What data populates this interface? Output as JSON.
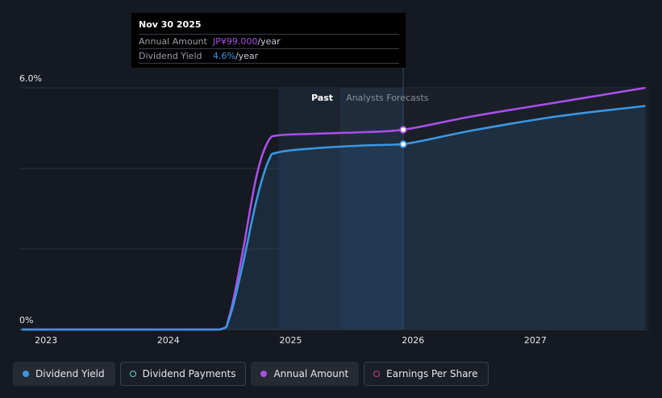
{
  "tooltip": {
    "date": "Nov 30 2025",
    "annual_amount_label": "Annual Amount",
    "annual_amount_value": "JP¥99.000",
    "annual_amount_unit": "/year",
    "dividend_yield_label": "Dividend Yield",
    "dividend_yield_value": "4.6%",
    "dividend_yield_unit": "/year"
  },
  "legend": [
    {
      "label": "Dividend Yield",
      "color": "#3b97e3",
      "marker": "filled",
      "active": true
    },
    {
      "label": "Dividend Payments",
      "color": "#5bd1c8",
      "marker": "ring",
      "active": false
    },
    {
      "label": "Annual Amount",
      "color": "#a94fe8",
      "marker": "filled",
      "active": true
    },
    {
      "label": "Earnings Per Share",
      "color": "#c4407a",
      "marker": "ring",
      "active": false
    }
  ],
  "chart_data": {
    "type": "line",
    "y_tick_labels": [
      "6.0%",
      "0%"
    ],
    "ylim": [
      0,
      6.0
    ],
    "x_tick_labels": [
      "2023",
      "2024",
      "2025",
      "2026",
      "2027"
    ],
    "xlim": [
      2022.8,
      2027.9
    ],
    "region_labels": {
      "past": "Past",
      "forecast": "Analysts Forecasts"
    },
    "past_region": [
      2024.9,
      2025.92
    ],
    "past_highlight_split": 2025.4,
    "series": [
      {
        "name": "Dividend Yield",
        "color": "#3b97e3",
        "points": [
          [
            2022.8,
            0
          ],
          [
            2024.1,
            0
          ],
          [
            2024.42,
            0
          ],
          [
            2024.5,
            0.3
          ],
          [
            2024.6,
            1.5
          ],
          [
            2024.72,
            3.2
          ],
          [
            2024.82,
            4.2
          ],
          [
            2024.9,
            4.4
          ],
          [
            2025.2,
            4.5
          ],
          [
            2025.6,
            4.57
          ],
          [
            2025.92,
            4.6
          ],
          [
            2026.5,
            4.95
          ],
          [
            2027.2,
            5.3
          ],
          [
            2027.9,
            5.55
          ]
        ]
      },
      {
        "name": "Annual Amount",
        "color": "#a94fe8",
        "points": [
          [
            2022.8,
            0
          ],
          [
            2024.1,
            0
          ],
          [
            2024.42,
            0
          ],
          [
            2024.5,
            0.35
          ],
          [
            2024.6,
            1.8
          ],
          [
            2024.72,
            3.8
          ],
          [
            2024.82,
            4.7
          ],
          [
            2024.9,
            4.82
          ],
          [
            2025.2,
            4.86
          ],
          [
            2025.6,
            4.9
          ],
          [
            2025.92,
            4.96
          ],
          [
            2026.5,
            5.3
          ],
          [
            2027.2,
            5.65
          ],
          [
            2027.9,
            6.0
          ]
        ]
      }
    ],
    "highlight_x": 2025.92,
    "highlight_values": {
      "Dividend Yield": 4.6,
      "Annual Amount": 4.96
    }
  }
}
